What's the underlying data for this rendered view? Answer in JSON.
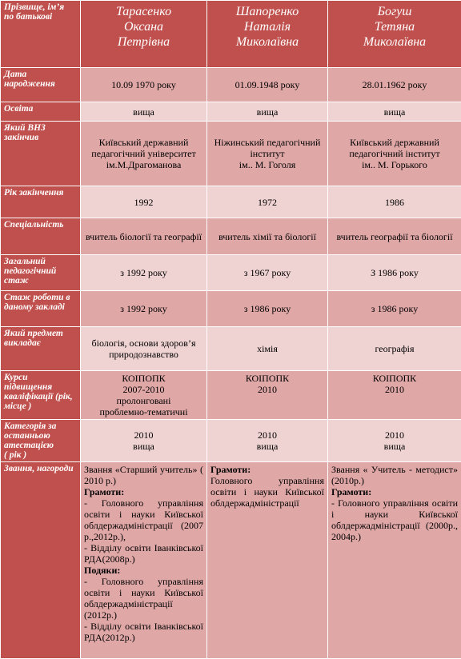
{
  "header": {
    "label": "Прізвище, ім’я\nпо батькові",
    "names": [
      "Тарасенко\nОксана\nПетрівна",
      "Шапоренко\nНаталія\nМиколаївна",
      "Богуш\nТетяна\nМиколаївна"
    ]
  },
  "rows": [
    {
      "label": "Дата\nнародження",
      "cells": [
        "10.09 1970 року",
        "01.09.1948 року",
        "28.01.1962 року"
      ]
    },
    {
      "label": "Освіта",
      "cells": [
        "вища",
        "вища",
        "вища"
      ]
    },
    {
      "label": "Який ВНЗ\nзакінчив",
      "cells": [
        "Київський державний\nпедагогічний університет\nім.М.Драгоманова",
        "Ніжинський педагогічний\nінститут\nім.. М. Гоголя",
        "Київський державний\nпедагогічний інститут\nім.. М. Горького"
      ]
    },
    {
      "label": "Рік закінчення",
      "cells": [
        "1992",
        "1972",
        "1986"
      ]
    },
    {
      "label": "Спеціальність",
      "cells": [
        "вчитель біології та географії",
        "вчитель хімії та біології",
        "вчитель географії та біології"
      ]
    },
    {
      "label": "Загальний\nпедагогічний\nстаж",
      "cells": [
        "з 1992 року",
        "з 1967 року",
        "З 1986 року"
      ]
    },
    {
      "label": "Стаж роботи в\nданому закладі",
      "cells": [
        "з 1992 року",
        "з 1986 року",
        "з 1986 року"
      ]
    },
    {
      "label": "Який предмет\nвикладає",
      "cells": [
        "біологія, основи здоров’я\nприродознавство",
        "хімія",
        "географія"
      ]
    },
    {
      "label": "Курси\nпідвищення\nкваліфікації (рік,\nмісце )",
      "cells": [
        "КОІПОПК\n2007-2010\nпролонговані\nпроблемно-тематичні",
        "КОІПОПК\n2010",
        "КОІПОПК\n2010"
      ]
    },
    {
      "label": "Категорія за\nостанньою\nатестацією\n( рік )",
      "cells": [
        "2010\nвища",
        "2010\nвища",
        "2010\nвища"
      ]
    }
  ],
  "awards": {
    "label": "Звання, нагороди",
    "cells": [
      [
        {
          "text": "Звання «Старший учитель» ( 2010 р.)",
          "bold": false
        },
        {
          "text": "Грамоти:",
          "bold": true
        },
        {
          "text": "- Головного управління освіти і науки Київської облдержадміністрації (2007 р.,2012р.),",
          "bold": false
        },
        {
          "text": "- Відділу освіти Іванківської РДА(2008р.)",
          "bold": false
        },
        {
          "text": "Подяки:",
          "bold": true
        },
        {
          "text": "- Головного управління освіти і науки Київської облдержадміністрації (2012р.)",
          "bold": false
        },
        {
          "text": "- Відділу освіти Іванківської РДА(2012р.)",
          "bold": false
        }
      ],
      [
        {
          "text": "Грамоти:",
          "bold": true
        },
        {
          "text": "Головного управління освіти і науки Київської облдержадміністрації",
          "bold": false
        }
      ],
      [
        {
          "text": "Звання « Учитель - методист» (2010р.)",
          "bold": false
        },
        {
          "text": "Грамоти:",
          "bold": true
        },
        {
          "text": "- Головного управління освіти і науки Київської облдержадміністрації (2000р., 2004р.)",
          "bold": false
        }
      ]
    ]
  }
}
